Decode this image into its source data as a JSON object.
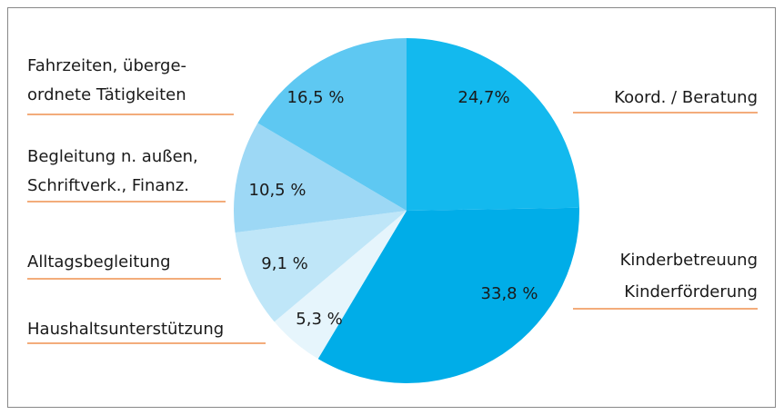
{
  "chart_data": {
    "type": "pie",
    "categories": [
      [
        "Koord. / Beratung"
      ],
      [
        "Kinderbetreuung",
        "Kinderförderung"
      ],
      [
        "Haushaltsunterstützung"
      ],
      [
        "Alltagsbegleitung"
      ],
      [
        "Begleitung n. außen,",
        "Schriftverk., Finanz."
      ],
      [
        "Fahrzeiten, überge-",
        "ordnete Tätigkeiten"
      ]
    ],
    "values": [
      24.7,
      33.8,
      5.3,
      9.1,
      10.5,
      16.5
    ],
    "value_labels": [
      "24,7%",
      "33,8 %",
      "5,3 %",
      "9,1 %",
      "10,5 %",
      "16,5 %"
    ],
    "colors": [
      "#13b9ee",
      "#00ade8",
      "#e6f5fc",
      "#bfe6f8",
      "#9dd8f5",
      "#5ec8f2"
    ]
  }
}
